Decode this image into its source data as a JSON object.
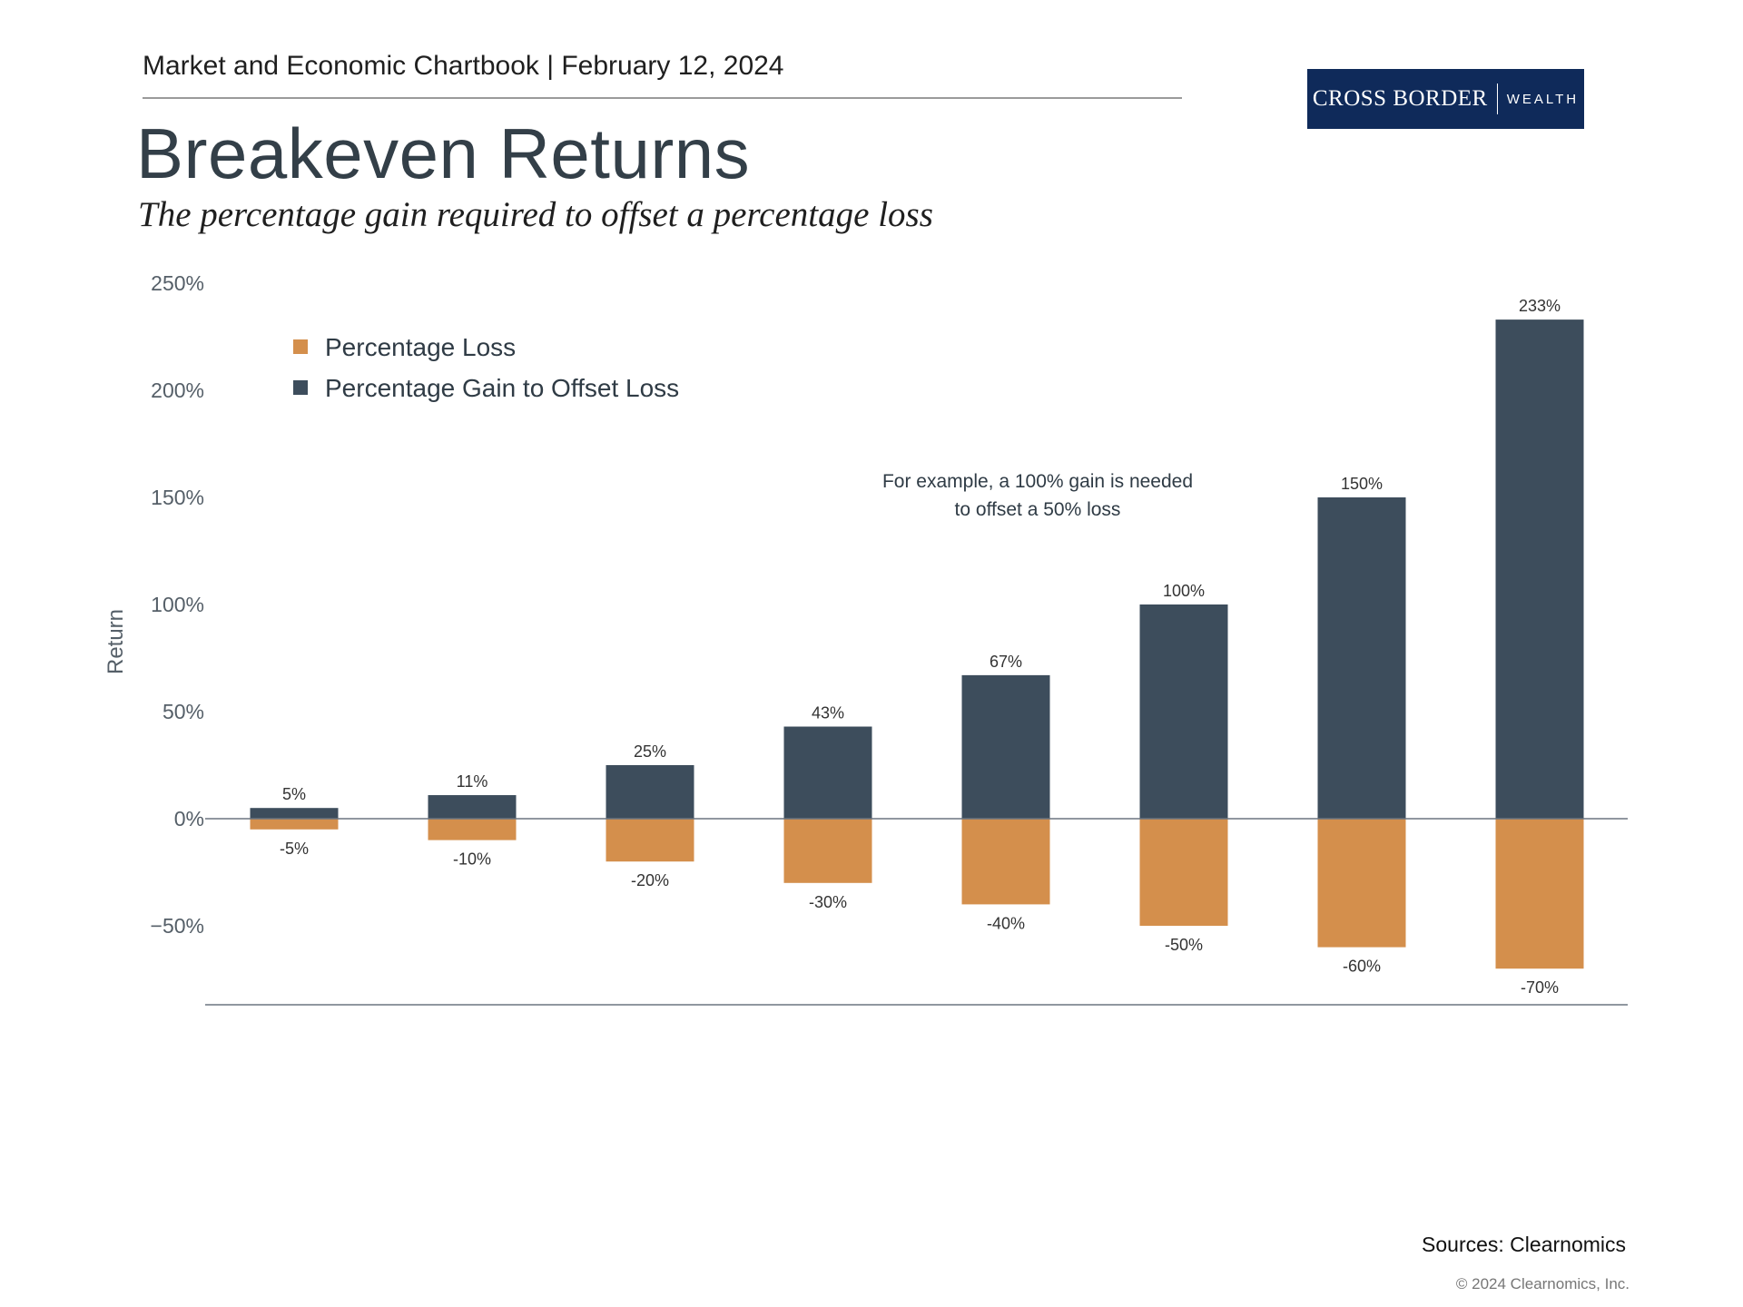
{
  "header": {
    "chartbook_line": "Market and Economic Chartbook | February 12, 2024",
    "title": "Breakeven Returns",
    "subtitle": "The percentage gain required to offset a percentage loss"
  },
  "logo": {
    "main": "CROSS BORDER",
    "sub": "WEALTH",
    "bg_color": "#0f2a5a"
  },
  "annotation": [
    "For example, a 100% gain is needed",
    "to offset a 50% loss"
  ],
  "footer": {
    "sources": "Sources: Clearnomics",
    "copyright": "© 2024 Clearnomics, Inc."
  },
  "chart_data": {
    "type": "bar",
    "ylabel": "Return",
    "xlabel": "",
    "ylim": [
      -87,
      250
    ],
    "yticks": [
      250,
      200,
      150,
      100,
      50,
      0,
      -50
    ],
    "ytick_labels": [
      "250%",
      "200%",
      "150%",
      "100%",
      "50%",
      "0%",
      "−50%"
    ],
    "legend_position": "top-left",
    "series": [
      {
        "name": "Percentage Loss",
        "color": "#d48f4c",
        "values": [
          -5,
          -10,
          -20,
          -30,
          -40,
          -50,
          -60,
          -70
        ],
        "labels": [
          "-5%",
          "-10%",
          "-20%",
          "-30%",
          "-40%",
          "-50%",
          "-60%",
          "-70%"
        ]
      },
      {
        "name": "Percentage Gain to Offset Loss",
        "color": "#3d4d5c",
        "values": [
          5,
          11,
          25,
          43,
          67,
          100,
          150,
          233
        ],
        "labels": [
          "5%",
          "11%",
          "25%",
          "43%",
          "67%",
          "100%",
          "150%",
          "233%"
        ]
      }
    ]
  }
}
